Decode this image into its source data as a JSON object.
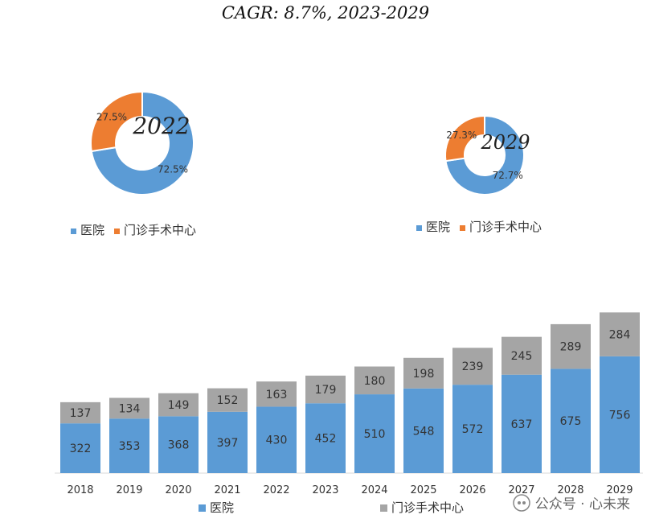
{
  "title": "CAGR: 8.7%, 2023-2029",
  "colors": {
    "hospital": "#5B9BD5",
    "outpatient_surgery": "#ED7D31",
    "outpatient_bar": "#A5A5A5"
  },
  "watermark": "公众号 · 心未来",
  "chart_data": [
    {
      "type": "pie",
      "center_label": "2022",
      "labels": [
        "医院",
        "门诊手术中心"
      ],
      "values": [
        72.5,
        27.5
      ],
      "value_labels": [
        "72.5%",
        "27.5%"
      ],
      "legend": [
        "医院",
        "门诊手术中心"
      ],
      "legend_position": "bottom"
    },
    {
      "type": "pie",
      "center_label": "2029",
      "labels": [
        "医院",
        "门诊手术中心"
      ],
      "values": [
        72.7,
        27.3
      ],
      "value_labels": [
        "72.7%",
        "27.3%"
      ],
      "legend": [
        "医院",
        "门诊手术中心"
      ],
      "legend_position": "bottom"
    },
    {
      "type": "bar",
      "stacked": true,
      "categories": [
        "2018",
        "2019",
        "2020",
        "2021",
        "2022",
        "2023",
        "2024",
        "2025",
        "2026",
        "2027",
        "2028",
        "2029"
      ],
      "series": [
        {
          "name": "医院",
          "values": [
            322,
            353,
            368,
            397,
            430,
            452,
            510,
            548,
            572,
            637,
            675,
            756
          ]
        },
        {
          "name": "门诊手术中心",
          "values": [
            137,
            134,
            149,
            152,
            163,
            179,
            180,
            198,
            239,
            245,
            289,
            284
          ]
        }
      ],
      "legend_position": "bottom",
      "grid": false
    }
  ]
}
